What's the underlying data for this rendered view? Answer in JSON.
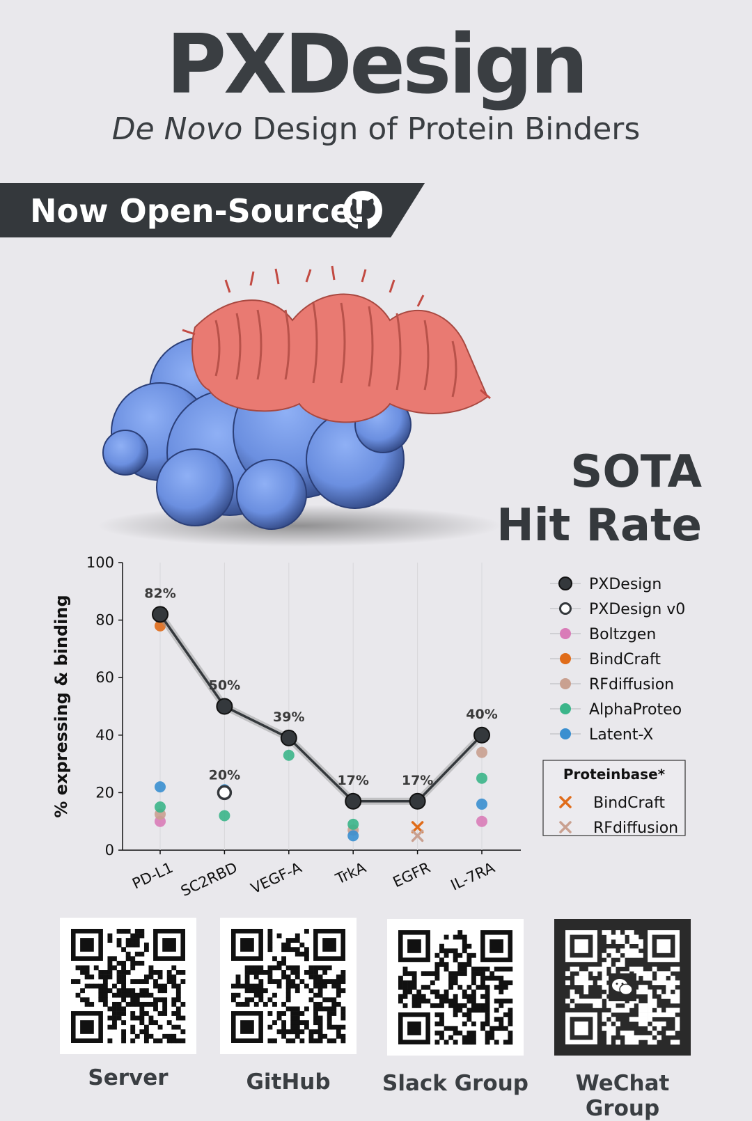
{
  "header": {
    "title": "PXDesign",
    "subtitle_italic": "De Novo",
    "subtitle_rest": " Design of Protein Binders"
  },
  "banner": {
    "text": "Now Open-Source!",
    "icon": "github-icon"
  },
  "hero": {
    "image": "protein-binder-complex",
    "tagline_line1": "SOTA",
    "tagline_line2": "Hit Rate"
  },
  "colors": {
    "background": "#e9e8ec",
    "text": "#35393d",
    "pxdesign": "#34383c",
    "boltzgen": "#d97cb8",
    "bindcraft": "#e06c1a",
    "rfdiffusion": "#c9a090",
    "alphaproteo": "#3bb58a",
    "latentx": "#3a8fd0",
    "target_surface": "#6b8fe0",
    "binder_helix": "#e97a72"
  },
  "chart_data": {
    "type": "scatter",
    "ylabel": "% expressing & binding",
    "ylim": [
      0,
      100
    ],
    "yticks": [
      0,
      20,
      40,
      60,
      80,
      100
    ],
    "categories": [
      "PD-L1",
      "SC2RBD",
      "VEGF-A",
      "TrkA",
      "EGFR",
      "IL-7RA"
    ],
    "series": [
      {
        "name": "PXDesign",
        "style": "line-filled",
        "values": [
          82,
          50,
          39,
          17,
          17,
          40
        ],
        "labels": [
          "82%",
          "50%",
          "39%",
          "17%",
          "17%",
          "40%"
        ]
      },
      {
        "name": "PXDesign v0",
        "style": "hollow",
        "values": [
          null,
          20,
          null,
          null,
          null,
          null
        ],
        "labels": [
          null,
          "20%",
          null,
          null,
          null,
          null
        ]
      },
      {
        "name": "Boltzgen",
        "style": "dot",
        "color_key": "boltzgen",
        "values": [
          10,
          null,
          null,
          null,
          null,
          10
        ]
      },
      {
        "name": "BindCraft",
        "style": "dot",
        "color_key": "bindcraft",
        "values": [
          78,
          null,
          null,
          null,
          null,
          null
        ]
      },
      {
        "name": "RFdiffusion",
        "style": "dot",
        "color_key": "rfdiffusion",
        "values": [
          12.5,
          null,
          null,
          7,
          null,
          34
        ]
      },
      {
        "name": "AlphaProteo",
        "style": "dot",
        "color_key": "alphaproteo",
        "values": [
          15,
          12,
          33,
          9,
          null,
          25
        ]
      },
      {
        "name": "Latent-X",
        "style": "dot",
        "color_key": "latentx",
        "values": [
          22,
          21,
          null,
          5,
          null,
          16
        ]
      }
    ],
    "proteinbase": {
      "title": "Proteinbase*",
      "series": [
        {
          "name": "BindCraft",
          "style": "x",
          "color_key": "bindcraft",
          "values": [
            null,
            null,
            null,
            null,
            8,
            null
          ]
        },
        {
          "name": "RFdiffusion",
          "style": "x",
          "color_key": "rfdiffusion",
          "values": [
            null,
            null,
            null,
            null,
            5,
            null
          ]
        }
      ]
    },
    "legend_position": "right"
  },
  "links": [
    {
      "label": "Server",
      "qr": "server-qr"
    },
    {
      "label": "GitHub",
      "qr": "github-qr"
    },
    {
      "label": "Slack Group",
      "qr": "slack-qr"
    },
    {
      "label": "WeChat Group",
      "qr": "wechat-qr",
      "icon": "wechat-icon"
    }
  ]
}
